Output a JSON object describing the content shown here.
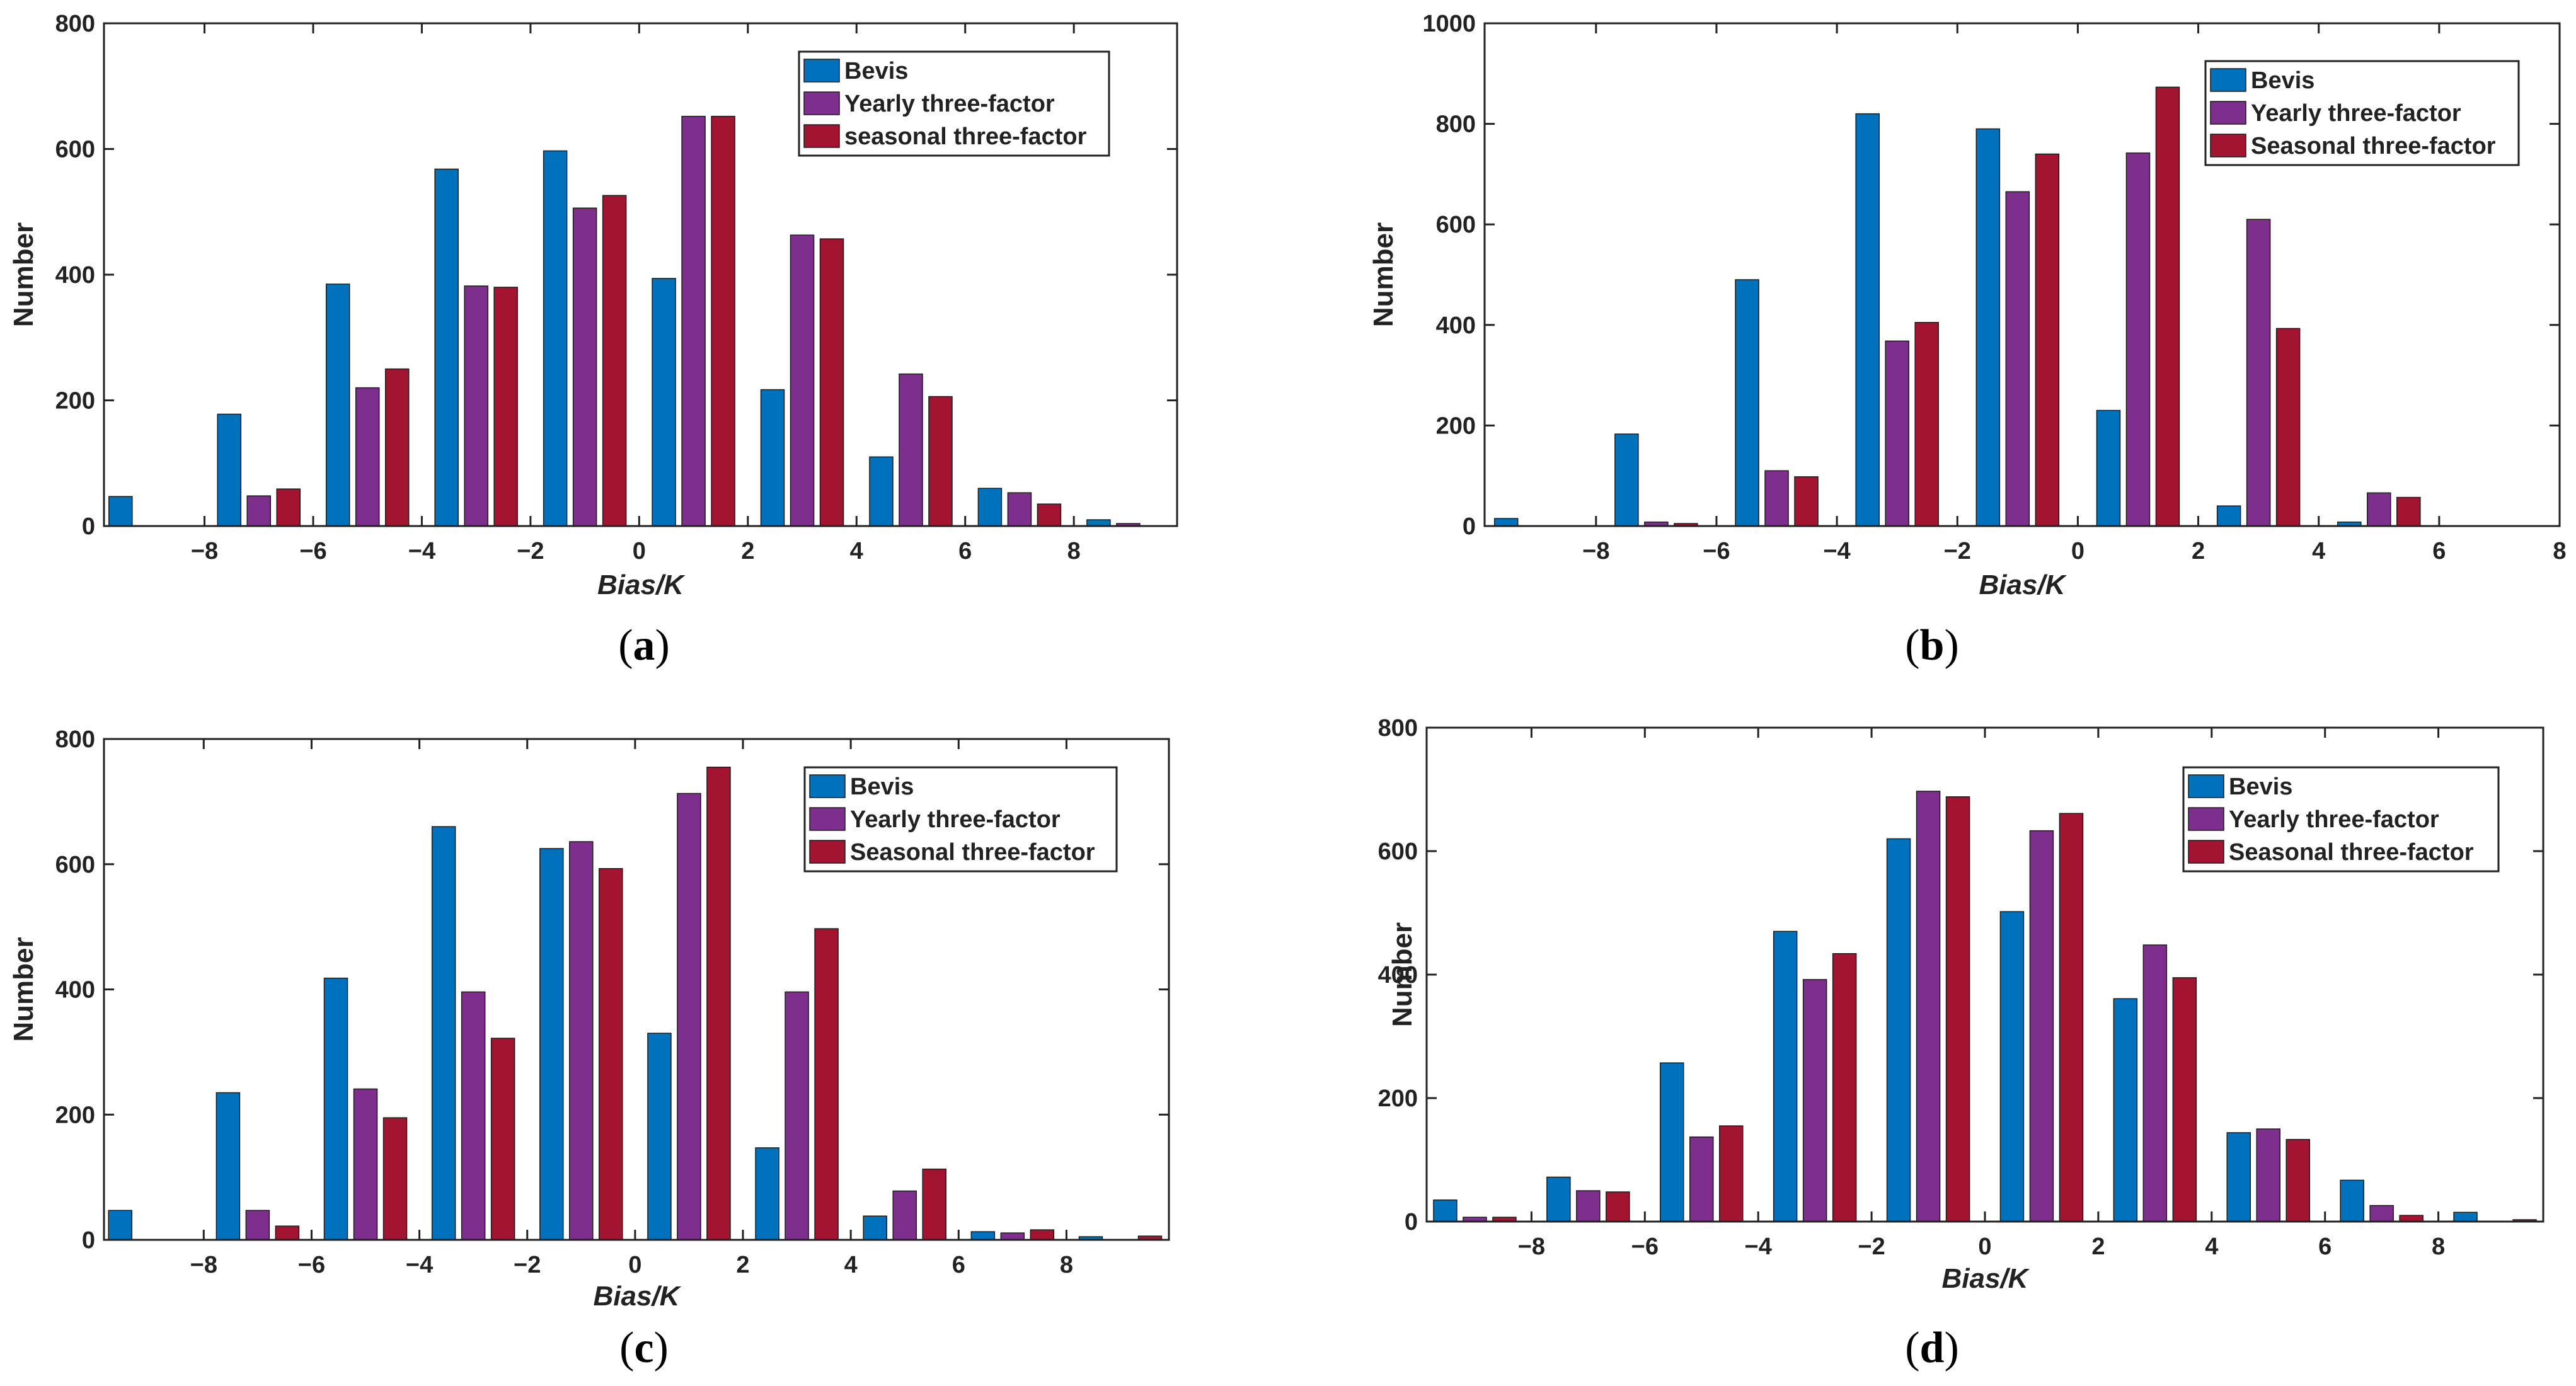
{
  "chart_data": [
    {
      "type": "bar",
      "panel_label": "a",
      "xlabel": "Bias/K",
      "ylabel": "Number",
      "xlim": [
        -9.85,
        9.9
      ],
      "ylim": [
        0,
        800
      ],
      "xticks": [
        "−8",
        "−6",
        "−4",
        "−2",
        "0",
        "2",
        "4",
        "6",
        "8"
      ],
      "yticks": [
        "0",
        "200",
        "400",
        "600",
        "800"
      ],
      "legend_position": "top-right",
      "x": [
        -9,
        -7,
        -5,
        -3,
        -1,
        1,
        3,
        5,
        7,
        9
      ],
      "series": [
        {
          "name": "Bevis",
          "color": "#0072BD",
          "values": [
            47,
            178,
            385,
            568,
            597,
            394,
            217,
            110,
            60,
            10
          ]
        },
        {
          "name": "Yearly three-factor",
          "color": "#7E2F8E",
          "values": [
            0,
            48,
            220,
            382,
            506,
            652,
            463,
            242,
            53,
            4
          ]
        },
        {
          "name": "seasonal three-factor",
          "color": "#A2142F",
          "values": [
            0,
            59,
            250,
            380,
            526,
            652,
            457,
            206,
            35,
            0
          ]
        }
      ]
    },
    {
      "type": "bar",
      "panel_label": "b",
      "xlabel": "Bias/K",
      "ylabel": "Number",
      "xlim": [
        -9.85,
        8.0
      ],
      "ylim": [
        0,
        1000
      ],
      "xticks": [
        "−8",
        "−6",
        "−4",
        "−2",
        "0",
        "2",
        "4",
        "6",
        "8"
      ],
      "yticks": [
        "0",
        "200",
        "400",
        "600",
        "800",
        "1000"
      ],
      "legend_position": "top-right",
      "x": [
        -9,
        -7,
        -5,
        -3,
        -1,
        1,
        3,
        5,
        7
      ],
      "series": [
        {
          "name": "Bevis",
          "color": "#0072BD",
          "values": [
            15,
            183,
            490,
            820,
            790,
            230,
            40,
            8,
            0
          ]
        },
        {
          "name": "Yearly three-factor",
          "color": "#7E2F8E",
          "values": [
            0,
            8,
            110,
            368,
            665,
            742,
            610,
            66,
            0
          ]
        },
        {
          "name": "Seasonal three-factor",
          "color": "#A2142F",
          "values": [
            0,
            5,
            98,
            405,
            740,
            873,
            393,
            57,
            0
          ]
        }
      ]
    },
    {
      "type": "bar",
      "panel_label": "c",
      "xlabel": "Bias/K",
      "ylabel": "Number",
      "xlim": [
        -9.85,
        9.9
      ],
      "ylim": [
        0,
        800
      ],
      "xticks": [
        "−8",
        "−6",
        "−4",
        "−2",
        "0",
        "2",
        "4",
        "6",
        "8"
      ],
      "yticks": [
        "0",
        "200",
        "400",
        "600",
        "800"
      ],
      "legend_position": "top-right",
      "x": [
        -9,
        -7,
        -5,
        -3,
        -1,
        1,
        3,
        5,
        7,
        9
      ],
      "series": [
        {
          "name": "Bevis",
          "color": "#0072BD",
          "values": [
            47,
            235,
            418,
            660,
            625,
            330,
            147,
            38,
            13,
            5
          ]
        },
        {
          "name": "Yearly three-factor",
          "color": "#7E2F8E",
          "values": [
            0,
            47,
            241,
            396,
            636,
            713,
            396,
            78,
            11,
            0
          ]
        },
        {
          "name": "Seasonal three-factor",
          "color": "#A2142F",
          "values": [
            0,
            22,
            195,
            322,
            593,
            755,
            497,
            113,
            16,
            6
          ]
        }
      ]
    },
    {
      "type": "bar",
      "panel_label": "d",
      "xlabel": "Bias/K",
      "ylabel": "Number",
      "xlim": [
        -9.85,
        9.85
      ],
      "ylim": [
        0,
        800
      ],
      "xticks": [
        "−8",
        "−6",
        "−4",
        "−2",
        "0",
        "2",
        "4",
        "6",
        "8"
      ],
      "yticks": [
        "0",
        "200",
        "400",
        "600",
        "800"
      ],
      "legend_position": "top-right",
      "x": [
        -9,
        -7,
        -5,
        -3,
        -1,
        1,
        3,
        5,
        7,
        9
      ],
      "series": [
        {
          "name": "Bevis",
          "color": "#0072BD",
          "values": [
            35,
            72,
            257,
            470,
            620,
            502,
            361,
            144,
            67,
            15
          ]
        },
        {
          "name": "Yearly three-factor",
          "color": "#7E2F8E",
          "values": [
            7,
            50,
            137,
            392,
            697,
            633,
            448,
            150,
            26,
            0
          ]
        },
        {
          "name": "Seasonal three-factor",
          "color": "#A2142F",
          "values": [
            7,
            48,
            155,
            434,
            688,
            661,
            395,
            133,
            10,
            3
          ]
        }
      ]
    }
  ]
}
